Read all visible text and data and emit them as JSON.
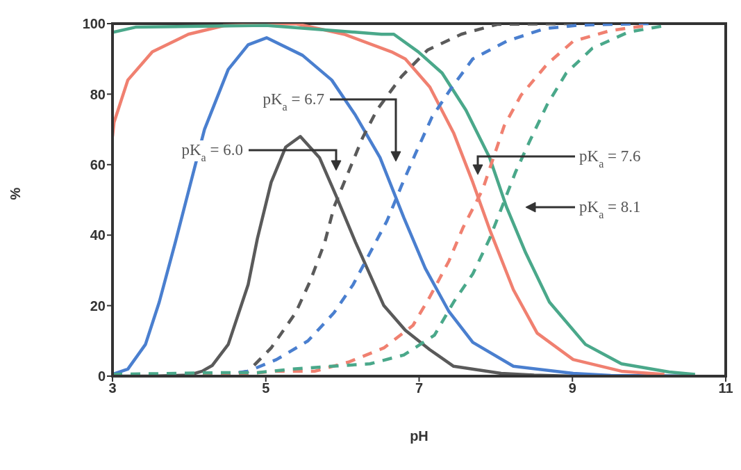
{
  "chart_data": {
    "type": "line",
    "xlabel": "pH",
    "ylabel": "%",
    "xlim": [
      3,
      11
    ],
    "xticks": [
      3,
      5,
      7,
      9,
      11
    ],
    "ylim": [
      0,
      100
    ],
    "yticks": [
      0,
      20,
      40,
      60,
      80,
      100
    ],
    "grid": false,
    "legend": false,
    "marker": "none",
    "series": [
      {
        "color": "#5a5a5a",
        "line_style": "solid",
        "x": [
          3,
          3.5,
          4.0,
          4.17,
          4.3,
          4.51,
          4.77,
          4.89,
          5.07,
          5.26,
          5.45,
          5.7,
          5.92,
          6.17,
          6.54,
          6.82,
          7.14,
          7.45,
          8.07,
          8.5,
          9,
          10.6
        ],
        "values": [
          0,
          0,
          0.3,
          1.4,
          3,
          9,
          26,
          39,
          55,
          65,
          68,
          62,
          51,
          38,
          20,
          13,
          7.5,
          2.8,
          0.8,
          0.3,
          0,
          0
        ]
      },
      {
        "color": "#4a7fcf",
        "line_style": "solid",
        "x": [
          3,
          3.2,
          3.43,
          3.61,
          3.82,
          4.01,
          4.2,
          4.51,
          4.77,
          5.01,
          5.48,
          5.86,
          6.17,
          6.49,
          6.8,
          7.08,
          7.39,
          7.7,
          8.23,
          9.01,
          9.5,
          10.6
        ],
        "values": [
          0.5,
          2,
          9,
          21,
          38,
          54,
          70,
          87,
          94,
          96,
          91,
          84,
          74,
          62,
          45,
          30.6,
          18.3,
          9.6,
          2.8,
          0.8,
          0.2,
          0
        ]
      },
      {
        "color": "#f08070",
        "line_style": "solid",
        "x": [
          3,
          3.02,
          3.2,
          3.52,
          3.99,
          4.45,
          5.39,
          6.02,
          6.64,
          6.82,
          7.14,
          7.45,
          7.7,
          7.92,
          8.23,
          8.54,
          9.01,
          9.64,
          10.2
        ],
        "values": [
          68,
          72,
          84,
          92,
          97,
          99.4,
          100,
          97,
          92,
          90,
          82,
          69,
          55,
          41.6,
          24.5,
          12.2,
          4.7,
          1.4,
          0.5
        ]
      },
      {
        "color": "#4aa88a",
        "line_style": "solid",
        "x": [
          3,
          3.3,
          5,
          6.51,
          6.67,
          6.99,
          7.3,
          7.61,
          7.92,
          8.14,
          8.39,
          8.7,
          9.17,
          9.64,
          10.26,
          10.6
        ],
        "values": [
          97.5,
          99,
          99.5,
          97,
          97,
          92,
          86,
          75.5,
          62,
          48,
          35,
          21,
          9,
          3.5,
          1.2,
          0.5
        ]
      },
      {
        "color": "#5a5a5a",
        "line_style": "dashed",
        "x": [
          3,
          4.5,
          4.77,
          5.07,
          5.39,
          5.58,
          5.77,
          5.89,
          6.08,
          6.26,
          6.45,
          6.77,
          7.11,
          7.55,
          8.02,
          9
        ],
        "values": [
          0,
          0.3,
          1.4,
          8,
          18,
          27,
          38,
          48,
          58,
          67.5,
          75.5,
          85,
          92.5,
          97,
          99.8,
          100
        ]
      },
      {
        "color": "#4a7fcf",
        "line_style": "dashed",
        "x": [
          3,
          4.5,
          4.77,
          5.14,
          5.55,
          5.89,
          6.14,
          6.36,
          6.58,
          6.77,
          6.95,
          7.17,
          7.42,
          7.7,
          8.14,
          8.64,
          9.1,
          10
        ],
        "values": [
          0,
          0.6,
          1.4,
          4.7,
          10,
          18,
          26,
          35,
          44,
          54,
          63,
          73.6,
          81.7,
          90,
          95,
          98.6,
          99.6,
          100
        ]
      },
      {
        "color": "#f08070",
        "line_style": "dashed",
        "x": [
          3,
          4.5,
          5.14,
          5.64,
          6.08,
          6.54,
          6.92,
          7.14,
          7.39,
          7.57,
          7.83,
          8.11,
          8.33,
          8.67,
          9.01,
          9.49,
          9.95
        ],
        "values": [
          0,
          0.3,
          1.4,
          1.4,
          4,
          8,
          14.4,
          22.5,
          32.7,
          42,
          53,
          71,
          79.7,
          88.5,
          95,
          98,
          99.4
        ]
      },
      {
        "color": "#4aa88a",
        "line_style": "dashed",
        "x": [
          3,
          4.42,
          4.89,
          5.35,
          5.86,
          6.36,
          6.8,
          7.2,
          7.45,
          7.7,
          7.92,
          8.26,
          8.45,
          8.67,
          8.92,
          9.26,
          9.73,
          10.2
        ],
        "values": [
          0.5,
          1,
          1,
          2,
          2.8,
          3.5,
          6,
          11.6,
          21,
          29,
          39,
          58,
          67,
          77,
          86,
          93,
          97.6,
          99.4
        ]
      }
    ],
    "annotations": [
      "pK$_{a}$ = 6.0",
      "pK$_{a}$ = 6.7",
      "pK$_{a}$ = 7.6",
      "pK$_{a}$ = 8.1"
    ]
  }
}
